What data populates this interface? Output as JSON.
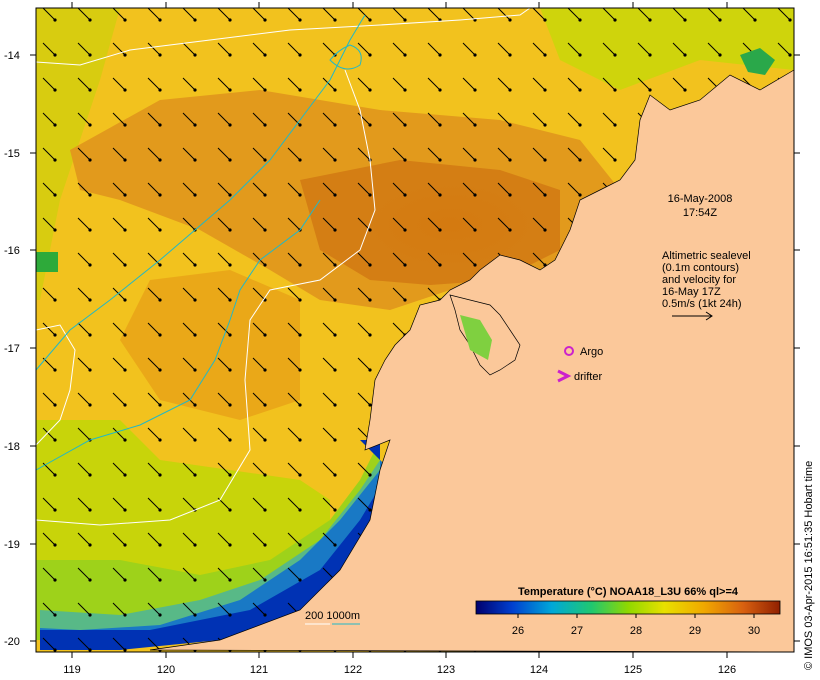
{
  "map": {
    "datetime_line1": "16-May-2008",
    "datetime_line2": "17:54Z",
    "altimetry_lines": [
      "Altimetric sealevel",
      "(0.1m contours)",
      "and velocity for",
      "16-May 17Z",
      "0.5m/s (1kt 24h)"
    ],
    "argo_label": "Argo",
    "drifter_label": "drifter",
    "depth_legend_label": "200  1000m",
    "colorbar_title": "Temperature (°C) NOAA18_L3U 66% ql>=4",
    "colorbar_ticks": [
      "26",
      "27",
      "28",
      "29",
      "30"
    ],
    "lat_ticks": [
      "-14",
      "-15",
      "-16",
      "-17",
      "-18",
      "-19",
      "-20"
    ],
    "lon_ticks": [
      "119",
      "120",
      "121",
      "122",
      "123",
      "124",
      "125",
      "126"
    ],
    "credit": "© IMOS 03-Apr-2015 16:51:35 Hobart time",
    "colors": {
      "land": "#fbc89a",
      "warm": "#e08a1a",
      "mid": "#f0b215",
      "cool": "#c8d400",
      "coastal_blue": "#0030b0",
      "contour": "#ffffff",
      "isobath": "#20b8c8",
      "argo": "#cc22cc",
      "drifter": "#cc22cc"
    }
  }
}
